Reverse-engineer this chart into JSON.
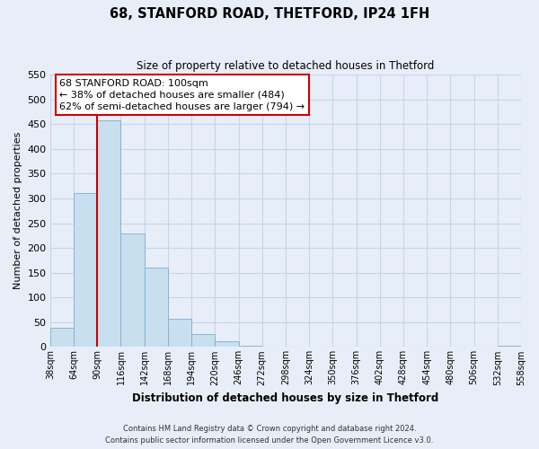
{
  "title": "68, STANFORD ROAD, THETFORD, IP24 1FH",
  "subtitle": "Size of property relative to detached houses in Thetford",
  "xlabel": "Distribution of detached houses by size in Thetford",
  "ylabel": "Number of detached properties",
  "bar_values": [
    38,
    311,
    457,
    229,
    160,
    57,
    26,
    12,
    3,
    1,
    0,
    0,
    0,
    0,
    0,
    0,
    0,
    0,
    0,
    2
  ],
  "bin_labels": [
    "38sqm",
    "64sqm",
    "90sqm",
    "116sqm",
    "142sqm",
    "168sqm",
    "194sqm",
    "220sqm",
    "246sqm",
    "272sqm",
    "298sqm",
    "324sqm",
    "350sqm",
    "376sqm",
    "402sqm",
    "428sqm",
    "454sqm",
    "480sqm",
    "506sqm",
    "532sqm",
    "558sqm"
  ],
  "bar_color": "#c8dff0",
  "bar_edge_color": "#7ab0d0",
  "grid_color": "#c8d4e8",
  "background_color": "#e8eef8",
  "vline_color": "#cc0000",
  "ylim": [
    0,
    550
  ],
  "yticks": [
    0,
    50,
    100,
    150,
    200,
    250,
    300,
    350,
    400,
    450,
    500,
    550
  ],
  "annotation_title": "68 STANFORD ROAD: 100sqm",
  "annotation_line1": "← 38% of detached houses are smaller (484)",
  "annotation_line2": "62% of semi-detached houses are larger (794) →",
  "annotation_box_color": "#ffffff",
  "annotation_border_color": "#cc0000",
  "footnote1": "Contains HM Land Registry data © Crown copyright and database right 2024.",
  "footnote2": "Contains public sector information licensed under the Open Government Licence v3.0."
}
